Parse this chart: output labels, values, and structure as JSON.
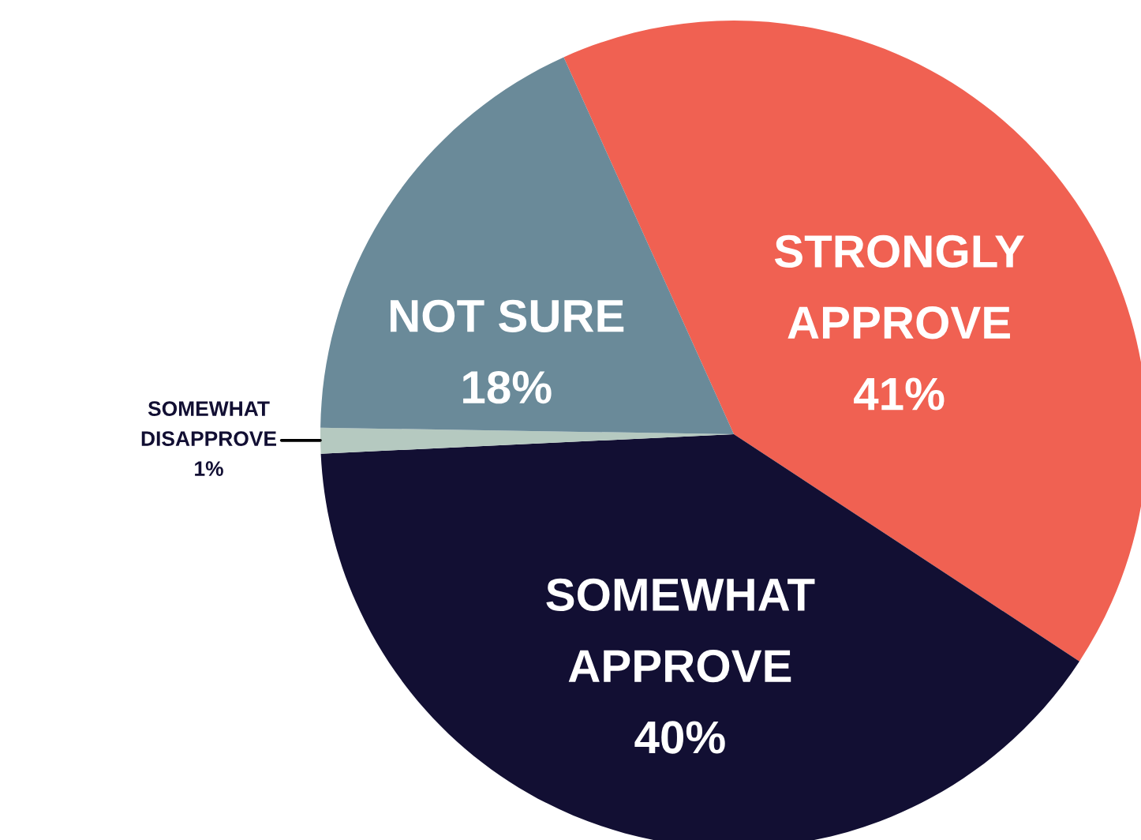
{
  "chart_data": {
    "type": "pie",
    "categories": [
      "STRONGLY\nAPPROVE",
      "SOMEWHAT\nAPPROVE",
      "SOMEWHAT\nDISAPPROVE",
      "NOT SURE"
    ],
    "values": [
      41,
      40,
      1,
      18
    ],
    "value_labels": [
      "41%",
      "40%",
      "1%",
      "18%"
    ],
    "colors": [
      "#f06152",
      "#120f33",
      "#b5c9c0",
      "#6a8a99"
    ]
  }
}
